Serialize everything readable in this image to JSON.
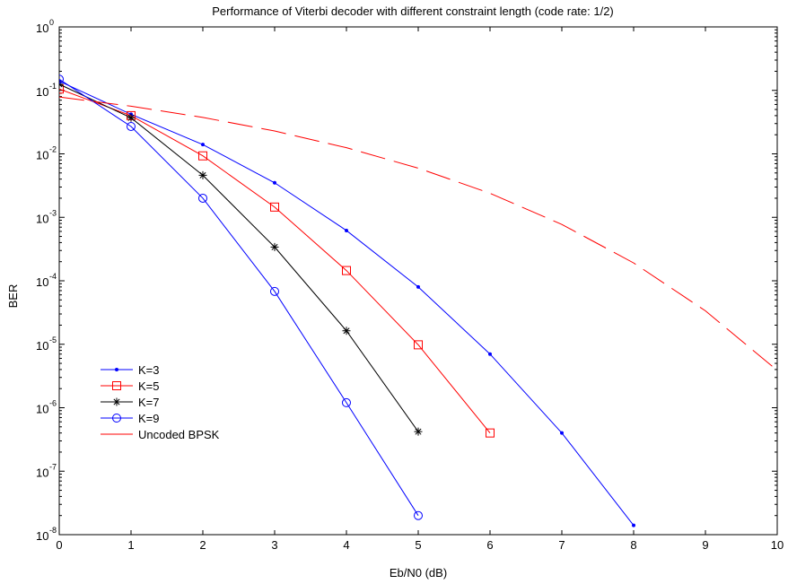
{
  "chart_data": {
    "type": "line",
    "title": "Performance of Viterbi decoder with different constraint length (code rate: 1/2)",
    "xlabel": "Eb/N0 (dB)",
    "ylabel": "BER",
    "xlim": [
      0,
      10
    ],
    "ylim_exponent": [
      -8,
      0
    ],
    "y_scale": "log",
    "grid": false,
    "legend_position": "lower-left",
    "x_ticks": [
      "0",
      "1",
      "2",
      "3",
      "4",
      "5",
      "6",
      "7",
      "8",
      "9",
      "10"
    ],
    "y_ticks": [
      {
        "base": "10",
        "exp": "0"
      },
      {
        "base": "10",
        "exp": "-1"
      },
      {
        "base": "10",
        "exp": "-2"
      },
      {
        "base": "10",
        "exp": "-3"
      },
      {
        "base": "10",
        "exp": "-4"
      },
      {
        "base": "10",
        "exp": "-5"
      },
      {
        "base": "10",
        "exp": "-6"
      },
      {
        "base": "10",
        "exp": "-7"
      },
      {
        "base": "10",
        "exp": "-8"
      }
    ],
    "series": [
      {
        "name": "K=3",
        "color": "#0000ff",
        "marker": "dot",
        "line": "solid",
        "x": [
          0,
          1,
          2,
          3,
          4,
          5,
          6,
          7,
          8
        ],
        "y": [
          0.14,
          0.042,
          0.014,
          0.0035,
          0.00062,
          8e-05,
          7e-06,
          4e-07,
          1.4e-08
        ]
      },
      {
        "name": "K=5",
        "color": "#ff0000",
        "marker": "square",
        "line": "solid",
        "x": [
          0,
          1,
          2,
          3,
          4,
          5,
          6
        ],
        "y": [
          0.105,
          0.04,
          0.0093,
          0.00145,
          0.000145,
          9.8e-06,
          4e-07
        ]
      },
      {
        "name": "K=7",
        "color": "#000000",
        "marker": "star",
        "line": "solid",
        "x": [
          0,
          1,
          2,
          3,
          4,
          5
        ],
        "y": [
          0.125,
          0.037,
          0.0046,
          0.00034,
          1.63e-05,
          4.2e-07
        ]
      },
      {
        "name": "K=9",
        "color": "#0000ff",
        "marker": "circle",
        "line": "solid",
        "x": [
          0,
          1,
          2,
          3,
          4,
          5
        ],
        "y": [
          0.15,
          0.027,
          0.002,
          6.8e-05,
          1.2e-06,
          2e-08
        ]
      },
      {
        "name": "Uncoded BPSK",
        "color": "#ff0000",
        "marker": "none",
        "line": "dashed",
        "x": [
          0,
          1,
          2,
          3,
          4,
          5,
          6,
          7,
          8,
          9,
          10
        ],
        "y": [
          0.0786,
          0.0563,
          0.0375,
          0.0229,
          0.0125,
          0.00595,
          0.00239,
          0.000773,
          0.000191,
          3.36e-05,
          3.87e-06
        ]
      }
    ]
  }
}
